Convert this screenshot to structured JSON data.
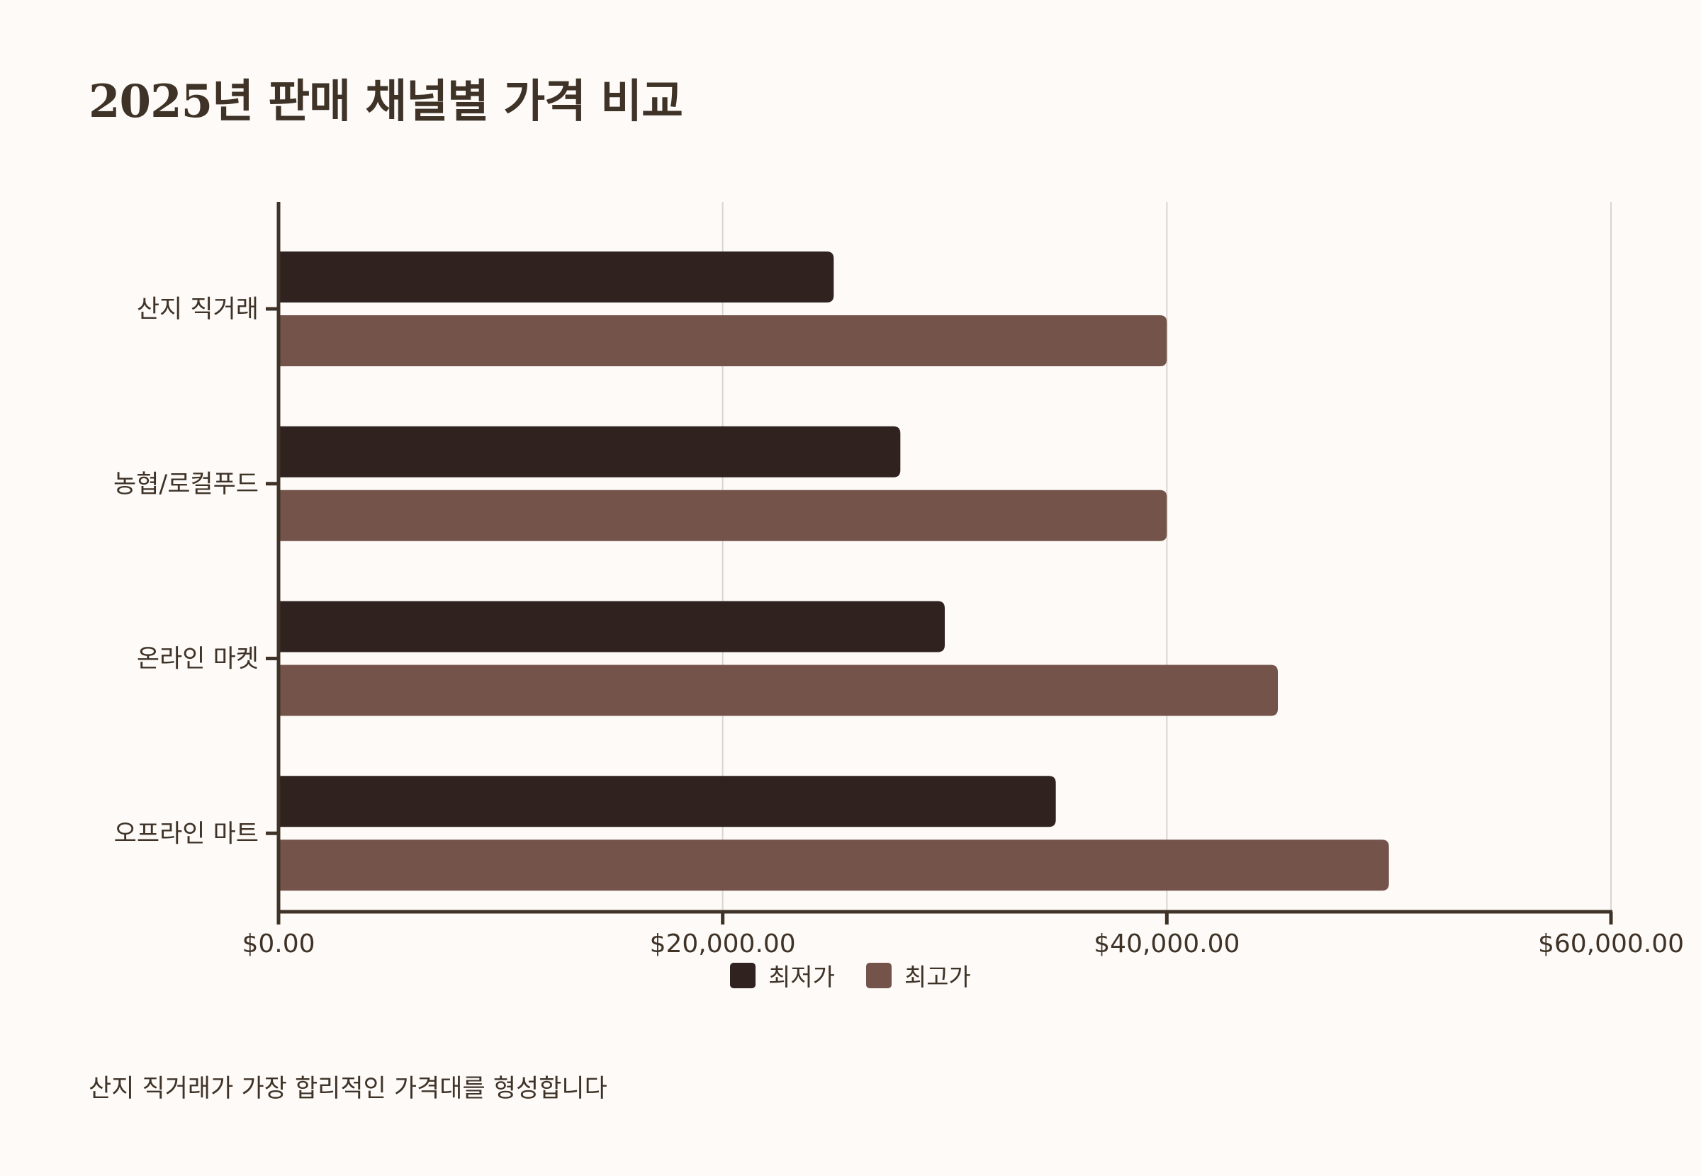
{
  "title": "2025년 판매 채널별 가격 비교",
  "caption": "산지 직거래가 가장 합리적인 가격대를 형성합니다",
  "colors": {
    "min": "#2f221f",
    "max": "#73534a",
    "grid": "#d9d6d2",
    "axis": "#3f3328"
  },
  "chart_data": {
    "type": "bar",
    "orientation": "horizontal",
    "categories": [
      "산지 직거래",
      "농협/로컬푸드",
      "온라인 마켓",
      "오프라인 마트"
    ],
    "series": [
      {
        "name": "최저가",
        "values": [
          25000,
          28000,
          30000,
          35000
        ]
      },
      {
        "name": "최고가",
        "values": [
          40000,
          40000,
          45000,
          50000
        ]
      }
    ],
    "xlim": [
      0,
      60000
    ],
    "xticks": [
      0,
      20000,
      40000,
      60000
    ],
    "xtick_labels": [
      "$0.00",
      "$20,000.00",
      "$40,000.00",
      "$60,000.00"
    ],
    "grid": true,
    "legend_position": "bottom"
  }
}
